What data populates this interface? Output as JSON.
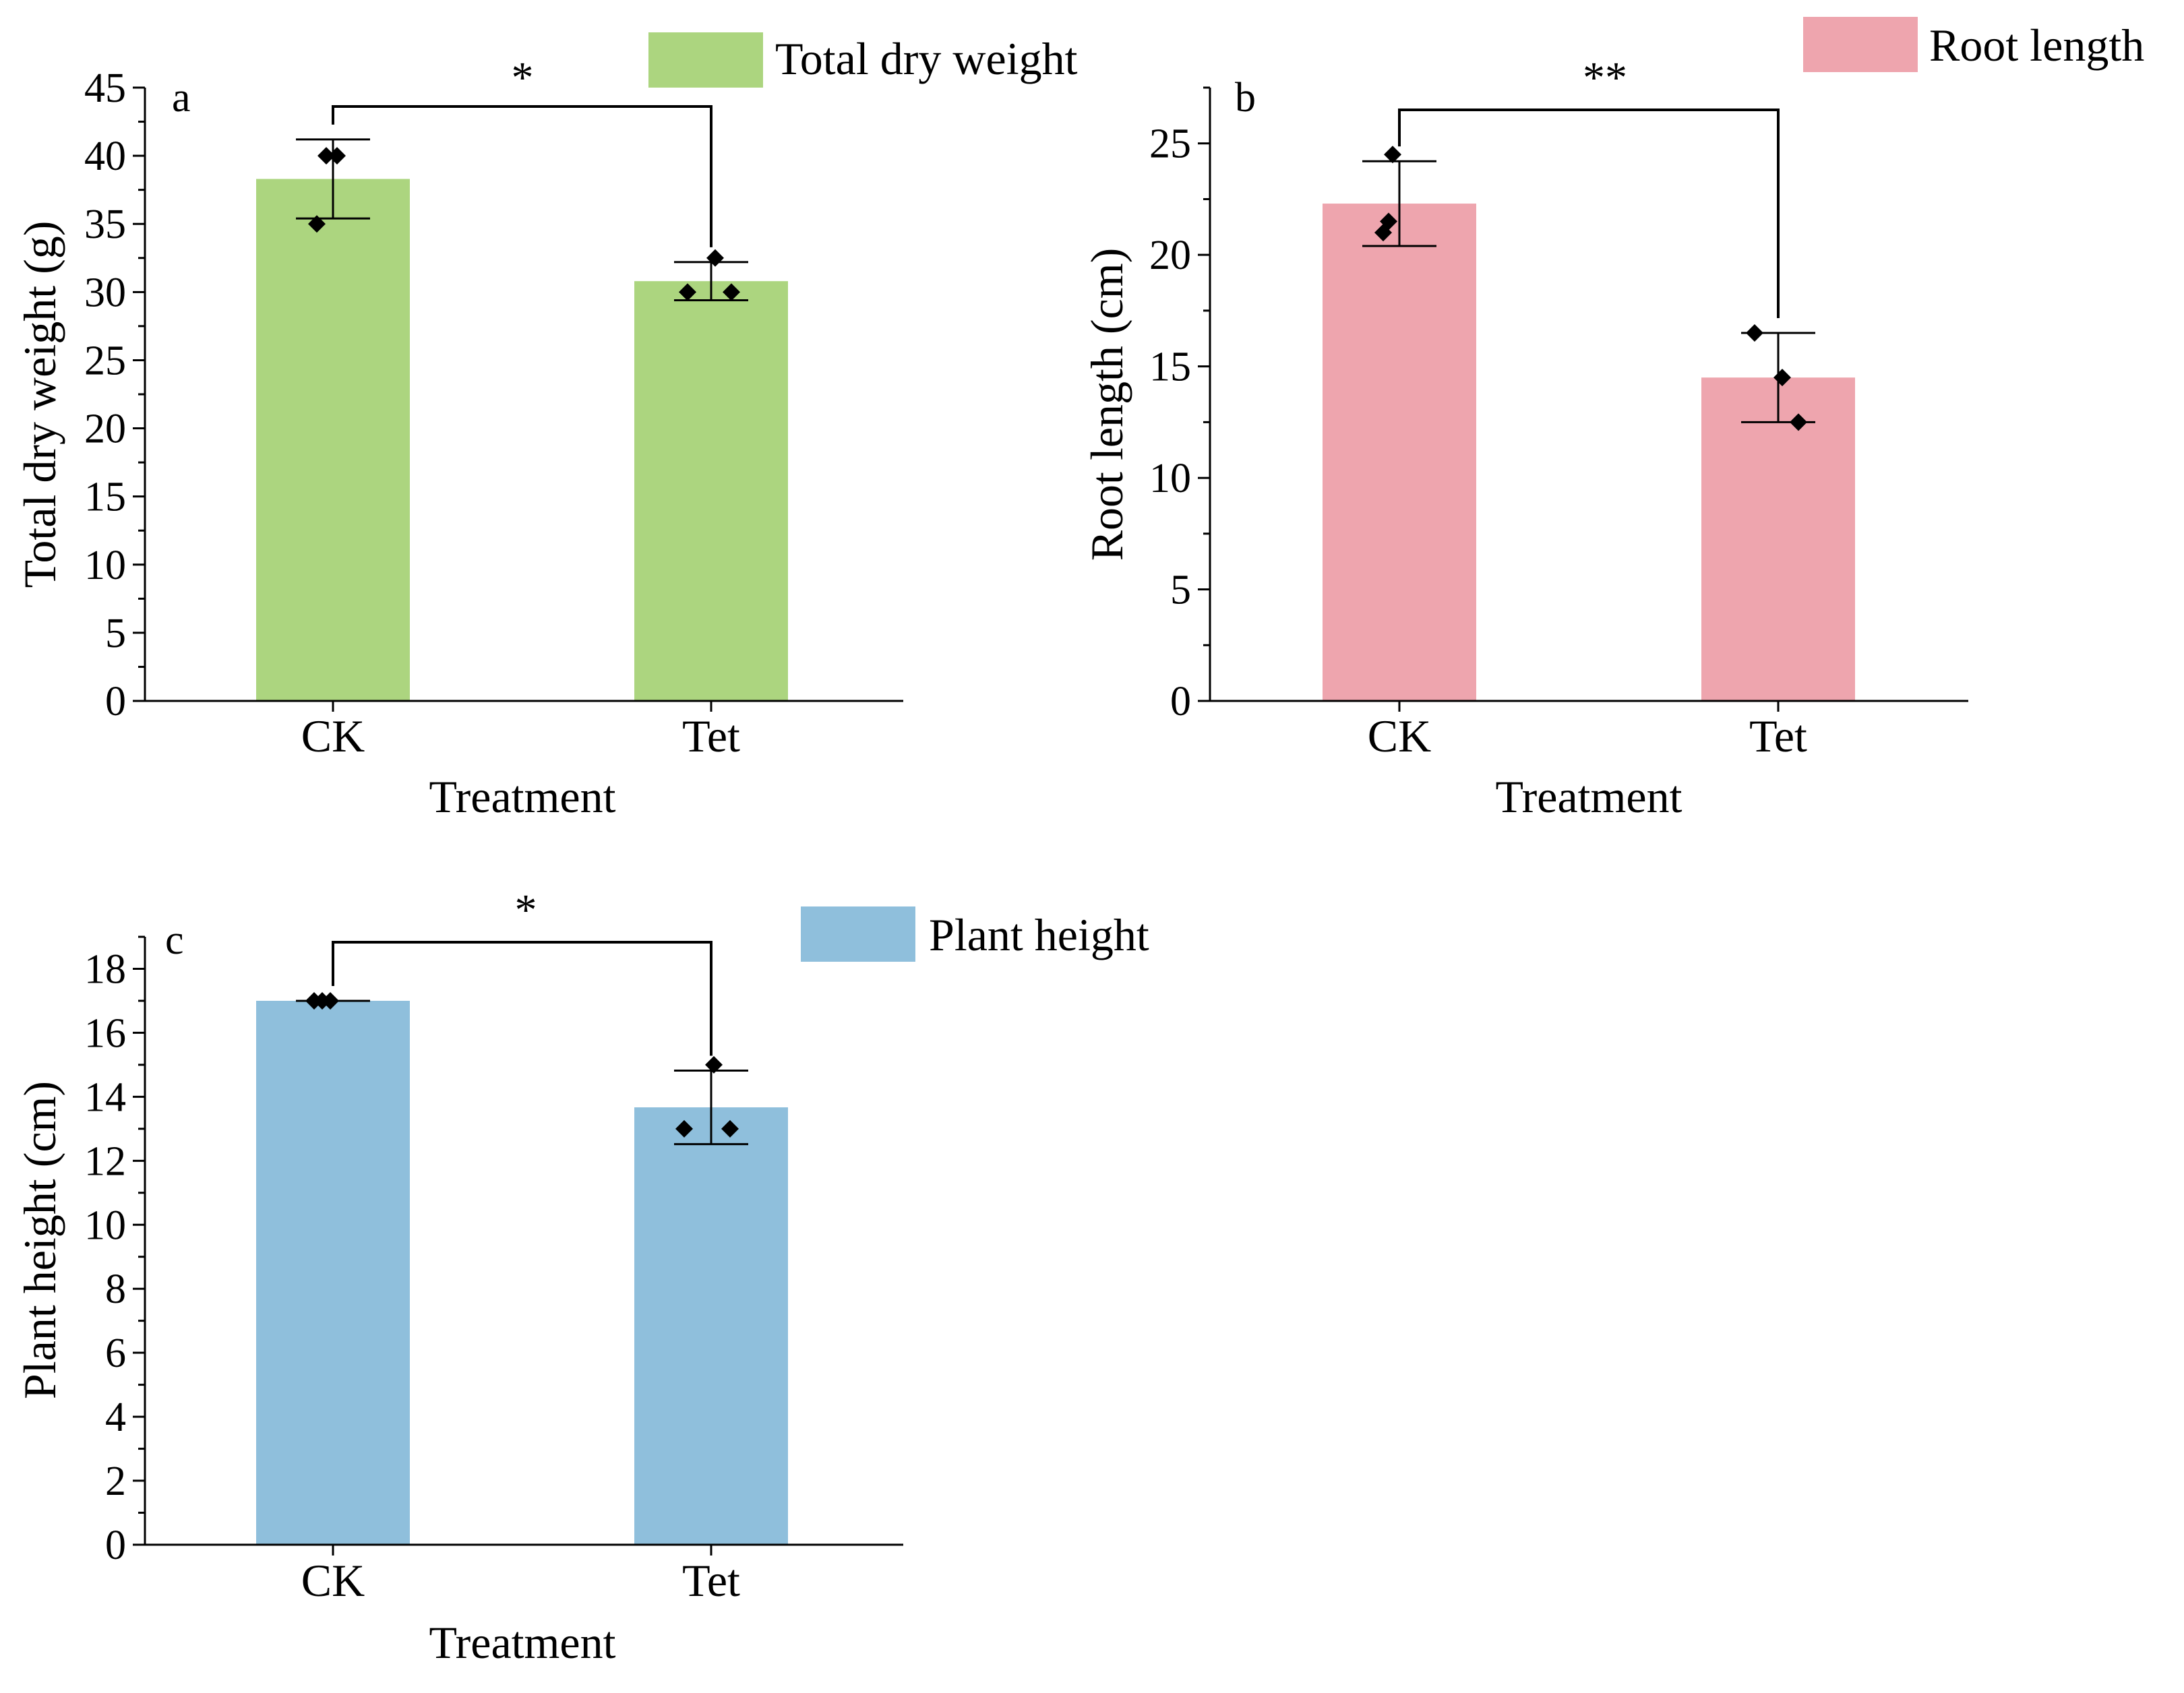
{
  "chart_data": [
    {
      "type": "bar",
      "panel": "a",
      "title": "",
      "legend": "Total dry weight",
      "legend_position": "top-right",
      "color": "#acd57f",
      "xlabel": "Treatment",
      "ylabel": "Total dry weight (g)",
      "categories": [
        "CK",
        "Tet"
      ],
      "values": [
        38.3,
        30.8
      ],
      "error": [
        2.9,
        1.4
      ],
      "points": [
        [
          40,
          40,
          35
        ],
        [
          30,
          32.5,
          30
        ]
      ],
      "ylim": [
        0,
        45
      ],
      "yticks": [
        0,
        5,
        10,
        15,
        20,
        25,
        30,
        35,
        40,
        45
      ],
      "yticklabels": [
        "0",
        "5",
        "10",
        "15",
        "20",
        "25",
        "30",
        "35",
        "40",
        "45"
      ],
      "significance": "*"
    },
    {
      "type": "bar",
      "panel": "b",
      "title": "",
      "legend": "Root length",
      "legend_position": "top-right",
      "color": "#eea5ae",
      "xlabel": "Treatment",
      "ylabel": "Root length (cm)",
      "categories": [
        "CK",
        "Tet"
      ],
      "values": [
        22.3,
        14.5
      ],
      "error": [
        1.9,
        2.0
      ],
      "points": [
        [
          24.5,
          21.5,
          21
        ],
        [
          16.5,
          14.5,
          12.5
        ]
      ],
      "ylim": [
        0,
        27.5
      ],
      "yticks": [
        0,
        5,
        10,
        15,
        20,
        25
      ],
      "yticklabels": [
        "0",
        "5",
        "10",
        "15",
        "20",
        "25"
      ],
      "significance": "**"
    },
    {
      "type": "bar",
      "panel": "c",
      "title": "",
      "legend": "Plant height",
      "legend_position": "top-right",
      "color": "#8fbfdc",
      "xlabel": "Treatment",
      "ylabel": "Plant height (cm)",
      "categories": [
        "CK",
        "Tet"
      ],
      "values": [
        17,
        13.67
      ],
      "error": [
        0,
        1.15
      ],
      "points": [
        [
          17,
          17,
          17
        ],
        [
          13,
          15,
          13
        ]
      ],
      "ylim": [
        0,
        19
      ],
      "yticks": [
        0,
        2,
        4,
        6,
        8,
        10,
        12,
        14,
        16,
        18
      ],
      "yticklabels": [
        "0",
        "2",
        "4",
        "6",
        "8",
        "10",
        "12",
        "14",
        "16",
        "18"
      ],
      "significance": "*"
    }
  ]
}
